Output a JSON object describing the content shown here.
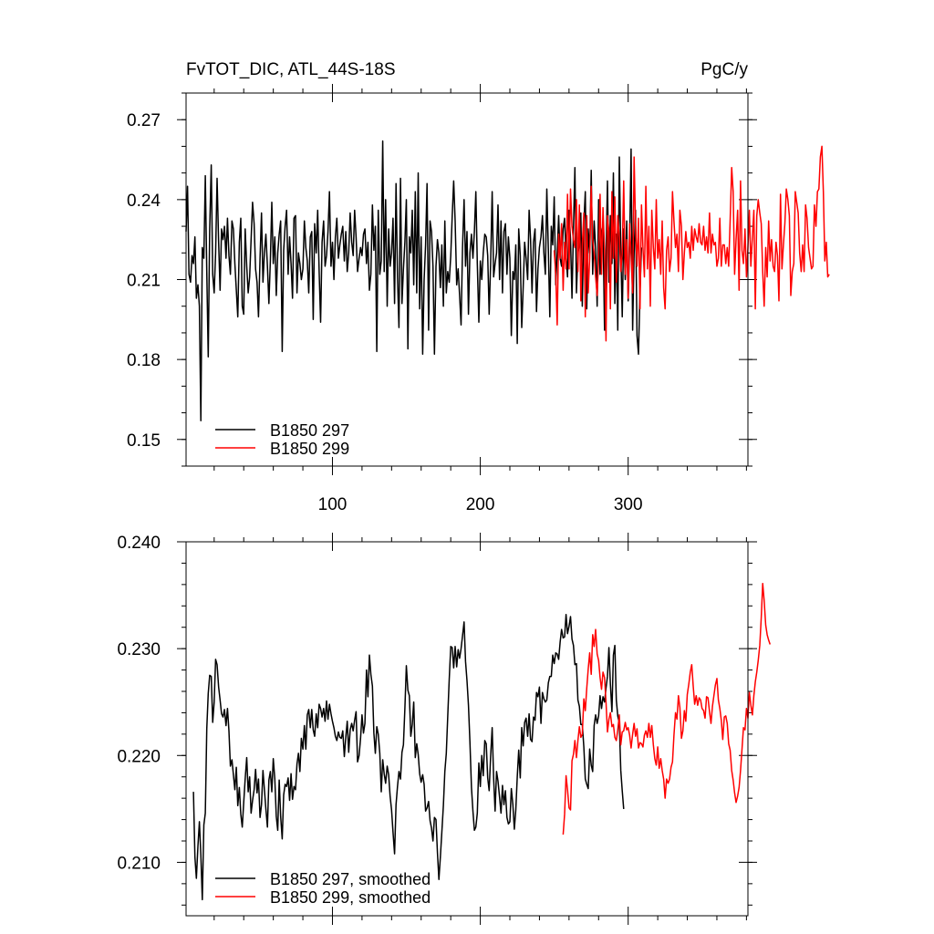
{
  "chart_data": [
    {
      "type": "line",
      "title": "FvTOT_DIC, ATL_44S-18S",
      "units": "PgC/y",
      "xlim": [
        1,
        381
      ],
      "ylim": [
        0.14,
        0.28
      ],
      "xticks": [
        100,
        200,
        300
      ],
      "yticks": [
        0.15,
        0.18,
        0.21,
        0.24,
        0.27
      ],
      "ytick_labels": [
        "0.15",
        "0.18",
        "0.21",
        "0.24",
        "0.27"
      ],
      "legend_position": "bottom-left",
      "series": [
        {
          "name": "B1850 297",
          "color": "#000000",
          "x_start": 1,
          "values": [
            0.228,
            0.245,
            0.212,
            0.209,
            0.219,
            0.216,
            0.226,
            0.203,
            0.208,
            0.2,
            0.157,
            0.222,
            0.218,
            0.249,
            0.213,
            0.181,
            0.229,
            0.253,
            0.212,
            0.205,
            0.22,
            0.248,
            0.224,
            0.206,
            0.229,
            0.225,
            0.23,
            0.218,
            0.233,
            0.219,
            0.212,
            0.232,
            0.229,
            0.216,
            0.206,
            0.196,
            0.224,
            0.233,
            0.2,
            0.197,
            0.229,
            0.215,
            0.205,
            0.211,
            0.225,
            0.239,
            0.231,
            0.214,
            0.209,
            0.196,
            0.218,
            0.235,
            0.209,
            0.22,
            0.227,
            0.215,
            0.201,
            0.217,
            0.239,
            0.216,
            0.226,
            0.204,
            0.22,
            0.227,
            0.232,
            0.183,
            0.221,
            0.23,
            0.236,
            0.212,
            0.226,
            0.216,
            0.203,
            0.233,
            0.234,
            0.205,
            0.22,
            0.216,
            0.21,
            0.214,
            0.232,
            0.222,
            0.217,
            0.205,
            0.226,
            0.228,
            0.195,
            0.231,
            0.22,
            0.236,
            0.213,
            0.194,
            0.224,
            0.232,
            0.215,
            0.219,
            0.228,
            0.243,
            0.215,
            0.224,
            0.21,
            0.226,
            0.233,
            0.218,
            0.223,
            0.227,
            0.23,
            0.217,
            0.228,
            0.213,
            0.22,
            0.235,
            0.224,
            0.219,
            0.236,
            0.226,
            0.213,
            0.218,
            0.222,
            0.219,
            0.227,
            0.229,
            0.216,
            0.224,
            0.206,
            0.212,
            0.238,
            0.221,
            0.23,
            0.183,
            0.236,
            0.212,
            0.217,
            0.262,
            0.213,
            0.24,
            0.2,
            0.229,
            0.215,
            0.22,
            0.233,
            0.201,
            0.246,
            0.211,
            0.192,
            0.248,
            0.201,
            0.214,
            0.224,
            0.24,
            0.184,
            0.226,
            0.22,
            0.236,
            0.208,
            0.243,
            0.205,
            0.25,
            0.199,
            0.226,
            0.182,
            0.21,
            0.223,
            0.246,
            0.191,
            0.232,
            0.228,
            0.215,
            0.182,
            0.215,
            0.225,
            0.22,
            0.207,
            0.223,
            0.2,
            0.232,
            0.205,
            0.213,
            0.209,
            0.219,
            0.234,
            0.247,
            0.232,
            0.208,
            0.214,
            0.204,
            0.193,
            0.222,
            0.24,
            0.215,
            0.228,
            0.197,
            0.22,
            0.227,
            0.218,
            0.228,
            0.243,
            0.216,
            0.194,
            0.217,
            0.21,
            0.22,
            0.227,
            0.226,
            0.219,
            0.197,
            0.216,
            0.243,
            0.211,
            0.216,
            0.22,
            0.238,
            0.21,
            0.232,
            0.205,
            0.228,
            0.231,
            0.212,
            0.226,
            0.218,
            0.189,
            0.213,
            0.21,
            0.223,
            0.186,
            0.229,
            0.219,
            0.192,
            0.207,
            0.224,
            0.218,
            0.21,
            0.236,
            0.225,
            0.205,
            0.224,
            0.229,
            0.198,
            0.214,
            0.222,
            0.226,
            0.234,
            0.22,
            0.212,
            0.244,
            0.221,
            0.196,
            0.23,
            0.223,
            0.241,
            0.208,
            0.22,
            0.234,
            0.218,
            0.215,
            0.229,
            0.233,
            0.219,
            0.211,
            0.236,
            0.225,
            0.203,
            0.229,
            0.252,
            0.205,
            0.22,
            0.223,
            0.235,
            0.2,
            0.231,
            0.243,
            0.199,
            0.229,
            0.22,
            0.251,
            0.212,
            0.232,
            0.222,
            0.2,
            0.24,
            0.212,
            0.228,
            0.23,
            0.191,
            0.218,
            0.247,
            0.209,
            0.234,
            0.216,
            0.25,
            0.201,
            0.227,
            0.191,
            0.256,
            0.221,
            0.196,
            0.229,
            0.21,
            0.232,
            0.202,
            0.223,
            0.259,
            0.191,
            0.22,
            0.236,
            0.189,
            0.182,
            0.206,
            0.222
          ]
        },
        {
          "name": "B1850 299",
          "color": "#ff0000",
          "x_start": 250,
          "values": [
            0.221,
            0.212,
            0.193,
            0.227,
            0.218,
            0.231,
            0.206,
            0.224,
            0.214,
            0.242,
            0.214,
            0.244,
            0.23,
            0.225,
            0.222,
            0.24,
            0.213,
            0.238,
            0.202,
            0.223,
            0.235,
            0.196,
            0.234,
            0.205,
            0.218,
            0.245,
            0.225,
            0.22,
            0.211,
            0.204,
            0.218,
            0.242,
            0.212,
            0.237,
            0.221,
            0.187,
            0.234,
            0.228,
            0.199,
            0.243,
            0.218,
            0.241,
            0.209,
            0.234,
            0.226,
            0.213,
            0.22,
            0.247,
            0.212,
            0.225,
            0.203,
            0.231,
            0.219,
            0.205,
            0.256,
            0.23,
            0.215,
            0.233,
            0.199,
            0.238,
            0.222,
            0.211,
            0.245,
            0.214,
            0.23,
            0.2,
            0.236,
            0.222,
            0.214,
            0.24,
            0.218,
            0.225,
            0.212,
            0.232,
            0.207,
            0.199,
            0.221,
            0.226,
            0.213,
            0.218,
            0.243,
            0.232,
            0.222,
            0.227,
            0.213,
            0.236,
            0.23,
            0.21,
            0.22,
            0.228,
            0.222,
            0.224,
            0.218,
            0.23,
            0.221,
            0.229,
            0.226,
            0.224,
            0.231,
            0.224,
            0.223,
            0.23,
            0.221,
            0.226,
            0.22,
            0.235,
            0.22,
            0.227,
            0.223,
            0.224,
            0.215,
            0.218,
            0.233,
            0.215,
            0.223,
            0.223,
            0.216,
            0.222,
            0.215,
            0.232,
            0.252,
            0.243,
            0.212,
            0.225,
            0.236,
            0.206,
            0.247,
            0.221,
            0.216,
            0.229,
            0.211,
            0.222,
            0.236,
            0.215,
            0.226,
            0.236,
            0.199,
            0.234,
            0.24,
            0.235,
            0.231,
            0.213,
            0.2,
            0.222,
            0.211,
            0.232,
            0.217,
            0.225,
            0.215,
            0.213,
            0.224,
            0.219,
            0.202,
            0.242,
            0.214,
            0.223,
            0.231,
            0.244,
            0.24,
            0.234,
            0.204,
            0.213,
            0.216,
            0.243,
            0.239,
            0.235,
            0.22,
            0.213,
            0.223,
            0.213,
            0.238,
            0.233,
            0.222,
            0.218,
            0.214,
            0.215,
            0.238,
            0.23,
            0.243,
            0.244,
            0.256,
            0.26,
            0.243,
            0.217,
            0.224,
            0.211,
            0.212
          ]
        }
      ]
    },
    {
      "type": "line",
      "xlim": [
        1,
        381
      ],
      "ylim": [
        0.205,
        0.24
      ],
      "xticks": [
        100,
        200,
        300
      ],
      "yticks": [
        0.21,
        0.22,
        0.23,
        0.24
      ],
      "ytick_labels": [
        "0.210",
        "0.220",
        "0.230",
        "0.240"
      ],
      "legend_position": "bottom-left",
      "series": [
        {
          "name": "B1850 297, smoothed",
          "color": "#000000",
          "x_start": 6,
          "values": [
            0.2166,
            0.2105,
            0.2085,
            0.2115,
            0.2138,
            0.2107,
            0.2065,
            0.2135,
            0.2146,
            0.2225,
            0.2258,
            0.2275,
            0.2274,
            0.2231,
            0.225,
            0.229,
            0.2285,
            0.2264,
            0.2252,
            0.2239,
            0.2236,
            0.2243,
            0.2228,
            0.2244,
            0.2223,
            0.219,
            0.2196,
            0.2182,
            0.2168,
            0.2189,
            0.2153,
            0.217,
            0.2145,
            0.2133,
            0.2156,
            0.2178,
            0.2198,
            0.2166,
            0.218,
            0.2146,
            0.2158,
            0.2168,
            0.2187,
            0.2165,
            0.2178,
            0.2142,
            0.2154,
            0.2186,
            0.2168,
            0.215,
            0.2133,
            0.2177,
            0.2185,
            0.2166,
            0.2197,
            0.2178,
            0.2143,
            0.213,
            0.2177,
            0.2143,
            0.2122,
            0.2163,
            0.2173,
            0.2171,
            0.2179,
            0.2158,
            0.2183,
            0.2159,
            0.2171,
            0.2168,
            0.2192,
            0.2202,
            0.2185,
            0.2216,
            0.2206,
            0.2228,
            0.2206,
            0.2238,
            0.2243,
            0.2226,
            0.2243,
            0.2224,
            0.2218,
            0.2239,
            0.2226,
            0.2248,
            0.2244,
            0.2236,
            0.2244,
            0.2232,
            0.2251,
            0.2234,
            0.2248,
            0.2239,
            0.2232,
            0.2226,
            0.2218,
            0.2214,
            0.2222,
            0.2217,
            0.2216,
            0.2223,
            0.2199,
            0.2217,
            0.2232,
            0.2203,
            0.2224,
            0.223,
            0.2223,
            0.2233,
            0.2241,
            0.2194,
            0.22,
            0.2216,
            0.2238,
            0.2221,
            0.223,
            0.228,
            0.2255,
            0.2294,
            0.2276,
            0.2265,
            0.2221,
            0.2202,
            0.2227,
            0.222,
            0.2202,
            0.2166,
            0.2196,
            0.2183,
            0.2174,
            0.219,
            0.2182,
            0.2162,
            0.2149,
            0.2128,
            0.2108,
            0.2154,
            0.2171,
            0.2185,
            0.2178,
            0.2203,
            0.221,
            0.2244,
            0.2284,
            0.2261,
            0.2256,
            0.2218,
            0.2229,
            0.225,
            0.2198,
            0.2211,
            0.2201,
            0.2183,
            0.2175,
            0.2182,
            0.2173,
            0.2148,
            0.2151,
            0.2157,
            0.2139,
            0.2132,
            0.212,
            0.2142,
            0.214,
            0.2109,
            0.2084,
            0.2105,
            0.2128,
            0.2153,
            0.2185,
            0.2202,
            0.2237,
            0.2271,
            0.2302,
            0.2301,
            0.2282,
            0.2302,
            0.2283,
            0.2299,
            0.2291,
            0.23,
            0.2312,
            0.2325,
            0.2288,
            0.227,
            0.2247,
            0.2213,
            0.217,
            0.2148,
            0.213,
            0.2133,
            0.2146,
            0.2193,
            0.2171,
            0.22,
            0.2181,
            0.2214,
            0.2211,
            0.2179,
            0.2167,
            0.2199,
            0.2226,
            0.2179,
            0.2148,
            0.2185,
            0.2176,
            0.2161,
            0.2146,
            0.2172,
            0.2154,
            0.2167,
            0.2142,
            0.2136,
            0.2138,
            0.2169,
            0.2154,
            0.2131,
            0.2149,
            0.218,
            0.2205,
            0.2179,
            0.2226,
            0.2209,
            0.2231,
            0.2235,
            0.2218,
            0.2239,
            0.2215,
            0.2213,
            0.2236,
            0.2233,
            0.2259,
            0.2255,
            0.2264,
            0.223,
            0.2259,
            0.2253,
            0.225,
            0.2252,
            0.2268,
            0.2274,
            0.2274,
            0.2294,
            0.2286,
            0.2296,
            0.2295,
            0.229,
            0.2306,
            0.2318,
            0.231,
            0.2311,
            0.2332,
            0.2314,
            0.2321,
            0.233,
            0.2309,
            0.2303,
            0.2285,
            0.2286,
            0.2252,
            0.2246,
            0.2229,
            0.2229,
            0.2208,
            0.2178,
            0.2173,
            0.2169,
            0.2206,
            0.2191,
            0.2185,
            0.2228,
            0.2238,
            0.223,
            0.2237,
            0.2256,
            0.2244,
            0.2255,
            0.225,
            0.2263,
            0.2274,
            0.2301,
            0.2267,
            0.2241,
            0.2294,
            0.2303,
            0.2252,
            0.2237,
            0.223,
            0.2186,
            0.2167,
            0.215
          ]
        },
        {
          "name": "B1850 299, smoothed",
          "color": "#ff0000",
          "x_start": 256,
          "values": [
            0.2126,
            0.2145,
            0.2181,
            0.2168,
            0.2151,
            0.2149,
            0.2195,
            0.2201,
            0.2214,
            0.2198,
            0.2214,
            0.2227,
            0.2217,
            0.222,
            0.2253,
            0.2242,
            0.2263,
            0.2281,
            0.2296,
            0.2276,
            0.2313,
            0.2302,
            0.2318,
            0.2295,
            0.2289,
            0.2273,
            0.2262,
            0.2278,
            0.2273,
            0.225,
            0.2222,
            0.2234,
            0.224,
            0.2227,
            0.2229,
            0.2217,
            0.2214,
            0.2224,
            0.2238,
            0.221,
            0.2222,
            0.2223,
            0.2231,
            0.2224,
            0.2226,
            0.2219,
            0.2207,
            0.222,
            0.223,
            0.2218,
            0.2225,
            0.2207,
            0.2212,
            0.2211,
            0.2208,
            0.2219,
            0.2223,
            0.2217,
            0.223,
            0.2217,
            0.2228,
            0.221,
            0.2197,
            0.2191,
            0.2208,
            0.2188,
            0.2197,
            0.2186,
            0.2178,
            0.216,
            0.2178,
            0.2174,
            0.2178,
            0.2189,
            0.2194,
            0.2219,
            0.224,
            0.2234,
            0.2256,
            0.2245,
            0.2216,
            0.2223,
            0.2242,
            0.2232,
            0.2257,
            0.2267,
            0.2278,
            0.2285,
            0.2265,
            0.2248,
            0.2256,
            0.2247,
            0.2254,
            0.2252,
            0.2244,
            0.2242,
            0.2235,
            0.2255,
            0.2254,
            0.2241,
            0.223,
            0.2246,
            0.2256,
            0.2266,
            0.2272,
            0.2252,
            0.2244,
            0.2233,
            0.2215,
            0.2236,
            0.2237,
            0.223,
            0.2211,
            0.2205,
            0.2186,
            0.2177,
            0.2165,
            0.2156,
            0.2162,
            0.217,
            0.2186,
            0.2206,
            0.2226,
            0.2224,
            0.2244,
            0.2235,
            0.2259,
            0.2247,
            0.2238,
            0.2256,
            0.2269,
            0.2278,
            0.2289,
            0.2303,
            0.2329,
            0.2361,
            0.2345,
            0.2322,
            0.2313,
            0.2308,
            0.2304
          ]
        }
      ]
    }
  ]
}
